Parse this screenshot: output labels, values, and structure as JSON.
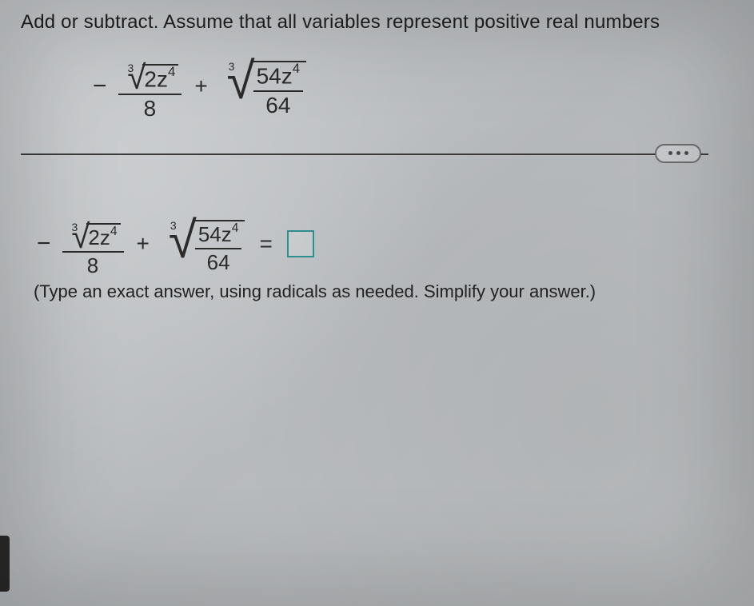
{
  "colors": {
    "background": "#c2c5c8",
    "text": "#2b2b2b",
    "rule": "#3b3b3b",
    "answer_box_border": "#2f8f8f",
    "pill_border": "#6a6a6a",
    "dot": "#4a4a4a"
  },
  "typography": {
    "instruction_fontsize_pt": 18,
    "math_fontsize_pt": 21,
    "hint_fontsize_pt": 16,
    "font_family": "Arial"
  },
  "instruction": "Add or subtract. Assume that all variables represent positive real numbers",
  "problem": {
    "leading_sign": "−",
    "term1": {
      "type": "fraction",
      "numerator": {
        "type": "radical",
        "index": "3",
        "radicand_base": "2z",
        "radicand_exponent": "4"
      },
      "denominator": "8"
    },
    "operator": "+",
    "term2": {
      "type": "radical",
      "index": "3",
      "radicand": {
        "type": "fraction",
        "numerator_base": "54z",
        "numerator_exponent": "4",
        "denominator": "64"
      }
    }
  },
  "answer_line": {
    "leading_sign": "−",
    "term1": {
      "numerator_index": "3",
      "numerator_radicand_base": "2z",
      "numerator_radicand_exponent": "4",
      "denominator": "8"
    },
    "operator": "+",
    "term2": {
      "index": "3",
      "numerator_base": "54z",
      "numerator_exponent": "4",
      "denominator": "64"
    },
    "equals": "="
  },
  "hint": "(Type an exact answer, using radicals as needed. Simplify your answer.)",
  "pill_dots": 3
}
